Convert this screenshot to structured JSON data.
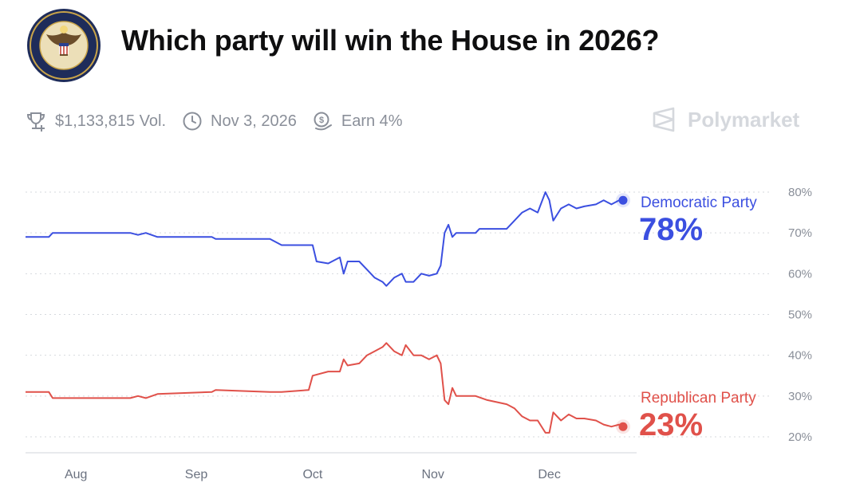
{
  "header": {
    "title": "Which party will win the House in 2026?",
    "logo_text_top": "U.S. HOUSE OF",
    "logo_text_bottom": "REPRESENTATIVES"
  },
  "meta": {
    "volume": "$1,133,815 Vol.",
    "end_date": "Nov 3, 2026",
    "earn": "Earn 4%",
    "brand": "Polymarket"
  },
  "colors": {
    "dem": "#3b4fe0",
    "rep": "#e0514a",
    "grid": "#d6d9de",
    "text_muted": "#8a8f99"
  },
  "icons": [
    "trophy-plus-icon",
    "clock-icon",
    "coin-earn-icon",
    "polymarket-logo-icon"
  ],
  "chart_data": {
    "type": "line",
    "y_ticks": [
      "80%",
      "70%",
      "60%",
      "50%",
      "40%",
      "30%",
      "20%"
    ],
    "ylim": [
      20,
      80
    ],
    "x_ticks": [
      "Aug",
      "Sep",
      "Oct",
      "Nov",
      "Dec"
    ],
    "xlim": [
      "2025-07-19",
      "2025-12-26"
    ],
    "grid": true,
    "series": [
      {
        "name": "Democratic Party",
        "label_value": "78%",
        "color": "#3b4fe0",
        "points": [
          [
            "2025-07-19",
            69
          ],
          [
            "2025-07-25",
            69
          ],
          [
            "2025-07-26",
            70
          ],
          [
            "2025-08-15",
            70
          ],
          [
            "2025-08-17",
            69.5
          ],
          [
            "2025-08-19",
            70
          ],
          [
            "2025-08-22",
            69
          ],
          [
            "2025-09-05",
            69
          ],
          [
            "2025-09-06",
            68.5
          ],
          [
            "2025-09-20",
            68.5
          ],
          [
            "2025-09-23",
            67
          ],
          [
            "2025-10-01",
            67
          ],
          [
            "2025-10-02",
            63
          ],
          [
            "2025-10-05",
            62.5
          ],
          [
            "2025-10-08",
            64
          ],
          [
            "2025-10-09",
            60
          ],
          [
            "2025-10-10",
            63
          ],
          [
            "2025-10-13",
            63
          ],
          [
            "2025-10-15",
            61
          ],
          [
            "2025-10-17",
            59
          ],
          [
            "2025-10-19",
            58
          ],
          [
            "2025-10-20",
            57
          ],
          [
            "2025-10-22",
            59
          ],
          [
            "2025-10-24",
            60
          ],
          [
            "2025-10-25",
            58
          ],
          [
            "2025-10-27",
            58
          ],
          [
            "2025-10-29",
            60
          ],
          [
            "2025-10-31",
            59.5
          ],
          [
            "2025-11-02",
            60
          ],
          [
            "2025-11-03",
            62
          ],
          [
            "2025-11-04",
            70
          ],
          [
            "2025-11-05",
            72
          ],
          [
            "2025-11-06",
            69
          ],
          [
            "2025-11-07",
            70
          ],
          [
            "2025-11-12",
            70
          ],
          [
            "2025-11-13",
            71
          ],
          [
            "2025-11-20",
            71
          ],
          [
            "2025-11-22",
            73
          ],
          [
            "2025-11-24",
            75
          ],
          [
            "2025-11-26",
            76
          ],
          [
            "2025-11-28",
            75
          ],
          [
            "2025-11-30",
            80
          ],
          [
            "2025-12-01",
            78
          ],
          [
            "2025-12-02",
            73
          ],
          [
            "2025-12-04",
            76
          ],
          [
            "2025-12-06",
            77
          ],
          [
            "2025-12-08",
            76
          ],
          [
            "2025-12-10",
            76.5
          ],
          [
            "2025-12-13",
            77
          ],
          [
            "2025-12-15",
            78
          ],
          [
            "2025-12-17",
            77
          ],
          [
            "2025-12-19",
            78
          ],
          [
            "2025-12-20",
            78
          ]
        ]
      },
      {
        "name": "Republican Party",
        "label_value": "23%",
        "color": "#e0514a",
        "points": [
          [
            "2025-07-19",
            31
          ],
          [
            "2025-07-25",
            31
          ],
          [
            "2025-07-26",
            29.5
          ],
          [
            "2025-08-15",
            29.5
          ],
          [
            "2025-08-17",
            30
          ],
          [
            "2025-08-19",
            29.5
          ],
          [
            "2025-08-22",
            30.5
          ],
          [
            "2025-09-05",
            31
          ],
          [
            "2025-09-06",
            31.5
          ],
          [
            "2025-09-20",
            31
          ],
          [
            "2025-09-23",
            31
          ],
          [
            "2025-09-30",
            31.5
          ],
          [
            "2025-10-01",
            35
          ],
          [
            "2025-10-05",
            36
          ],
          [
            "2025-10-08",
            36
          ],
          [
            "2025-10-09",
            39
          ],
          [
            "2025-10-10",
            37.5
          ],
          [
            "2025-10-13",
            38
          ],
          [
            "2025-10-15",
            40
          ],
          [
            "2025-10-17",
            41
          ],
          [
            "2025-10-19",
            42
          ],
          [
            "2025-10-20",
            43
          ],
          [
            "2025-10-22",
            41
          ],
          [
            "2025-10-24",
            40
          ],
          [
            "2025-10-25",
            42.5
          ],
          [
            "2025-10-27",
            40
          ],
          [
            "2025-10-29",
            40
          ],
          [
            "2025-10-31",
            39
          ],
          [
            "2025-11-02",
            40
          ],
          [
            "2025-11-03",
            38
          ],
          [
            "2025-11-04",
            29
          ],
          [
            "2025-11-05",
            28
          ],
          [
            "2025-11-06",
            32
          ],
          [
            "2025-11-07",
            30
          ],
          [
            "2025-11-12",
            30
          ],
          [
            "2025-11-15",
            29
          ],
          [
            "2025-11-20",
            28
          ],
          [
            "2025-11-22",
            27
          ],
          [
            "2025-11-24",
            25
          ],
          [
            "2025-11-26",
            24
          ],
          [
            "2025-11-28",
            24
          ],
          [
            "2025-11-30",
            21
          ],
          [
            "2025-12-01",
            21
          ],
          [
            "2025-12-02",
            26
          ],
          [
            "2025-12-04",
            24
          ],
          [
            "2025-12-06",
            25.5
          ],
          [
            "2025-12-08",
            24.5
          ],
          [
            "2025-12-10",
            24.5
          ],
          [
            "2025-12-13",
            24
          ],
          [
            "2025-12-15",
            23
          ],
          [
            "2025-12-17",
            22.5
          ],
          [
            "2025-12-19",
            23
          ],
          [
            "2025-12-20",
            22.5
          ]
        ]
      }
    ]
  }
}
